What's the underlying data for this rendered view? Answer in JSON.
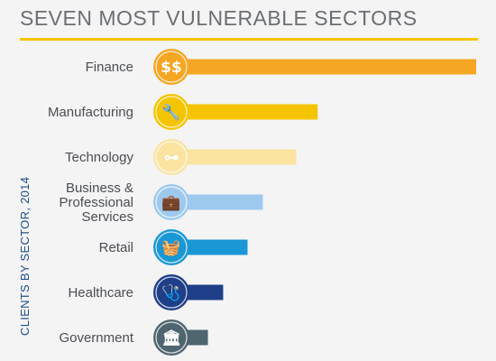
{
  "header": {
    "title": "SEVEN MOST VULNERABLE SECTORS"
  },
  "chart_data": {
    "type": "bar",
    "orientation": "horizontal",
    "title": "SEVEN MOST VULNERABLE SECTORS",
    "ylabel": "CLIENTS BY SECTOR, 2014",
    "xlabel": "",
    "grid": false,
    "categories": [
      [
        "Finance"
      ],
      [
        "Manufacturing"
      ],
      [
        "Technology"
      ],
      [
        "Business &",
        "Professional",
        "Services"
      ],
      [
        "Retail"
      ],
      [
        "Healthcare"
      ],
      [
        "Government"
      ]
    ],
    "values": [
      100,
      48,
      41,
      30,
      25,
      17,
      12
    ],
    "xlim": [
      0,
      100
    ],
    "colors": [
      "#f5a623",
      "#f5c400",
      "#fbe3a0",
      "#9ec9ee",
      "#1a97d5",
      "#1f3f88",
      "#4f6570"
    ],
    "icons": [
      "dollar-coins-icon",
      "wrench-icon",
      "circuit-icon",
      "briefcase-icon",
      "shopping-basket-icon",
      "stethoscope-icon",
      "government-building-icon"
    ]
  }
}
